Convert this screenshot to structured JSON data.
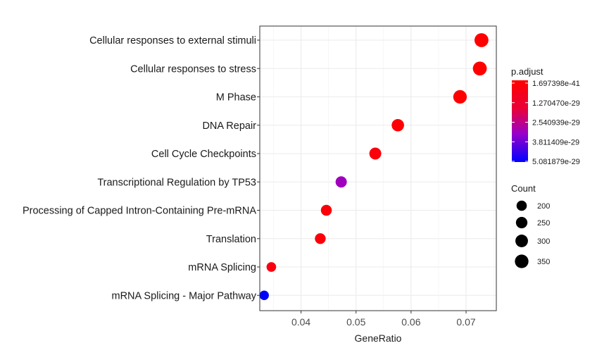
{
  "chart_data": {
    "type": "scatter",
    "subtype": "dot-plot",
    "categories": [
      "Cellular responses to external stimuli",
      "Cellular responses to stress",
      "M Phase",
      "DNA Repair",
      "Cell Cycle Checkpoints",
      "Transcriptional Regulation by TP53",
      "Processing of Capped Intron-Containing Pre-mRNA",
      "Translation",
      "mRNA Splicing",
      "mRNA Splicing - Major Pathway"
    ],
    "gene_ratio": [
      0.0728,
      0.0725,
      0.0689,
      0.0576,
      0.0535,
      0.0473,
      0.0446,
      0.0435,
      0.0346,
      0.0333
    ],
    "count": [
      369,
      366,
      348,
      291,
      270,
      239,
      225,
      220,
      175,
      168
    ],
    "p_adjust": [
      1.697398e-41,
      1.2e-39,
      2e-36,
      8e-31,
      3e-30,
      3.2e-29,
      2.8e-30,
      3e-30,
      5e-30,
      5.081879e-29
    ],
    "xlabel": "GeneRatio",
    "ylabel": "",
    "xlim": [
      0.0325,
      0.0755
    ],
    "x_ticks": [
      0.04,
      0.05,
      0.06,
      0.07
    ],
    "x_tick_labels": [
      "0.04",
      "0.05",
      "0.06",
      "0.07"
    ],
    "grid": true,
    "color_legend": {
      "title": "p.adjust",
      "range": [
        1.697398e-41,
        5.081879e-29
      ],
      "labels": [
        "1.697398e-41",
        "1.270470e-29",
        "2.540939e-29",
        "3.811409e-29",
        "5.081879e-29"
      ],
      "low_color": "#ff0000",
      "high_color": "#0000ff",
      "mid_color": "#8a00d4"
    },
    "size_legend": {
      "title": "Count",
      "values": [
        200,
        250,
        300,
        350
      ],
      "labels": [
        "200",
        "250",
        "300",
        "350"
      ],
      "color": "#000000"
    }
  }
}
